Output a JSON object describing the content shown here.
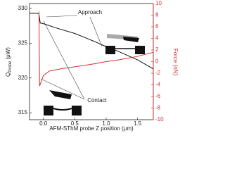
{
  "chart_data": {
    "type": "line",
    "xlabel": "AFM-SThM probe Z position (μm)",
    "ylabel": {
      "main": "Q",
      "sub": "Probe",
      "rest": " (μW)"
    },
    "y2label": "Force (nN)",
    "annotations": [
      "Approach",
      "Contact"
    ],
    "xlim": [
      -0.22,
      1.75
    ],
    "xticks": [
      {
        "value": 0,
        "label": "0.0"
      },
      {
        "value": 0.5,
        "label": "0.5"
      },
      {
        "value": 1,
        "label": "1.0"
      },
      {
        "value": 1.5,
        "label": "1.5"
      }
    ],
    "ylim": [
      314,
      330.7
    ],
    "yticks": [
      315,
      320,
      325,
      330
    ],
    "y2lim": [
      -10,
      10
    ],
    "y2ticks": [
      -10,
      -8,
      -6,
      -4,
      -2,
      0,
      2,
      4,
      6,
      8,
      10
    ],
    "series": [
      {
        "color": "#111111",
        "x": [
          -0.22,
          -0.1,
          -0.07,
          -0.05,
          0.0,
          0.2,
          0.5,
          0.8,
          1.0,
          1.2,
          1.5,
          1.75
        ],
        "values": [
          329.3,
          329.3,
          329.2,
          327.9,
          327.8,
          327.2,
          326.4,
          325.3,
          324.5,
          323.8,
          322.6,
          321.3
        ]
      },
      {
        "color": "#d03030",
        "axis": "y2",
        "x": [
          -0.07,
          -0.06,
          0.0,
          0.1,
          0.3,
          0.5,
          0.8,
          1.0,
          1.2,
          1.5,
          1.75
        ],
        "values": [
          8.6,
          -4.2,
          -2.4,
          -1.6,
          -1.2,
          -0.9,
          -0.4,
          0.0,
          0.3,
          0.9,
          1.6
        ]
      }
    ]
  }
}
